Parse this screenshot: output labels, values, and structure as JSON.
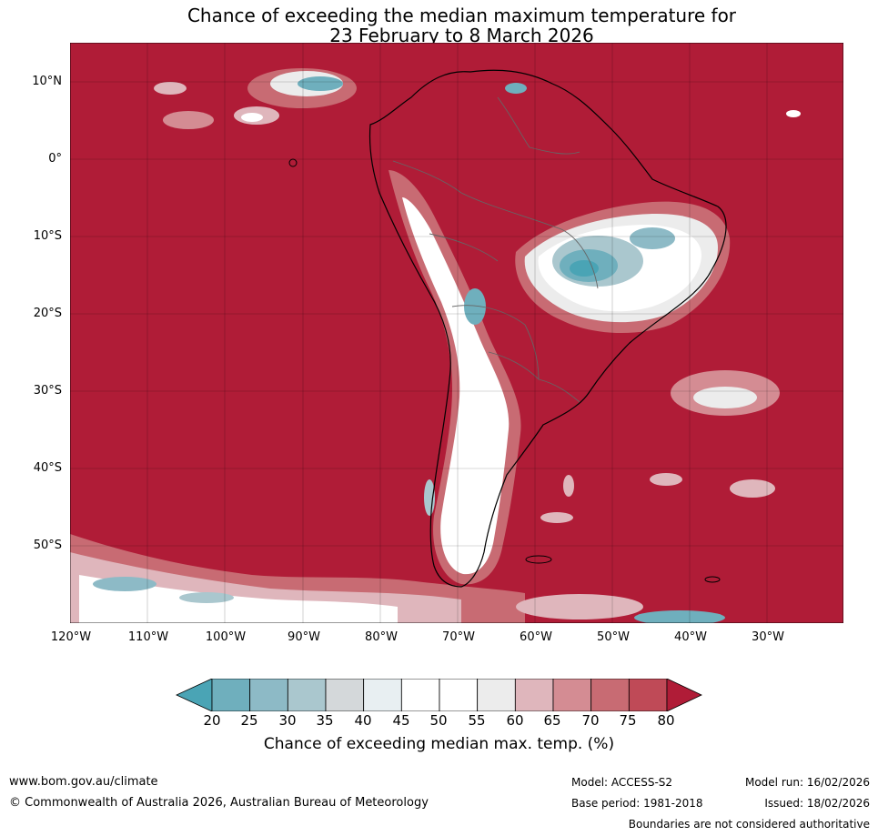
{
  "title_line1": "Chance of exceeding the median maximum temperature for",
  "title_line2": "23 February to 8 March 2026",
  "lat_ticks": [
    "10°N",
    "0°",
    "10°S",
    "20°S",
    "30°S",
    "40°S",
    "50°S"
  ],
  "lon_ticks": [
    "120°W",
    "110°W",
    "100°W",
    "90°W",
    "80°W",
    "70°W",
    "60°W",
    "50°W",
    "40°W",
    "30°W"
  ],
  "colorbar": {
    "labels": [
      "20",
      "25",
      "30",
      "35",
      "40",
      "45",
      "50",
      "55",
      "60",
      "65",
      "70",
      "75",
      "80"
    ],
    "colors": [
      "#4aa4b5",
      "#6fafbd",
      "#8dbac6",
      "#aac7ce",
      "#d4d8da",
      "#e8eff2",
      "#ffffff",
      "#ffffff",
      "#ececec",
      "#dfb6bc",
      "#d48c93",
      "#c86b73",
      "#bf4a57",
      "#b01c37"
    ],
    "title": "Chance of exceeding median max. temp. (%)"
  },
  "map_colors": {
    "high": "#b01c37",
    "mid": "#c86b73",
    "light": "#e0b4ba",
    "neutral": "#ffffff",
    "low": "#6fafbd",
    "lowest": "#4aa4b5"
  },
  "footer": {
    "website": "www.bom.gov.au/climate",
    "copyright": "© Commonwealth of Australia 2026, Australian Bureau of Meteorology",
    "model": "Model: ACCESS-S2",
    "base_period": "Base period: 1981-2018",
    "model_run": "Model run: 16/02/2026",
    "issued": "Issued: 18/02/2026",
    "disclaimer": "Boundaries are not considered authoritative"
  }
}
